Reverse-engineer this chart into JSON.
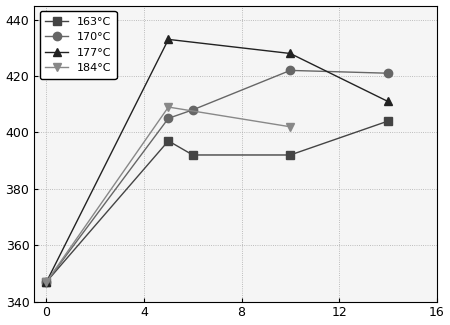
{
  "series": [
    {
      "label": "163°C",
      "x": [
        0,
        5,
        6,
        10,
        14
      ],
      "y": [
        347,
        397,
        392,
        392,
        404
      ],
      "marker": "s",
      "color": "#444444",
      "linestyle": "-"
    },
    {
      "label": "170°C",
      "x": [
        0,
        5,
        6,
        10,
        14
      ],
      "y": [
        347,
        405,
        408,
        422,
        421
      ],
      "marker": "o",
      "color": "#666666",
      "linestyle": "-"
    },
    {
      "label": "177°C",
      "x": [
        0,
        5,
        10,
        14
      ],
      "y": [
        347,
        433,
        428,
        411
      ],
      "marker": "^",
      "color": "#222222",
      "linestyle": "-"
    },
    {
      "label": "184°C",
      "x": [
        0,
        5,
        10
      ],
      "y": [
        347,
        409,
        402
      ],
      "marker": "v",
      "color": "#888888",
      "linestyle": "-"
    }
  ],
  "xlim": [
    -0.5,
    16
  ],
  "ylim": [
    340,
    445
  ],
  "xticks": [
    0,
    4,
    8,
    12,
    16
  ],
  "yticks": [
    340,
    360,
    380,
    400,
    420,
    440
  ],
  "xlabel": "",
  "ylabel": "",
  "legend_loc": "upper left",
  "grid": true,
  "background_color": "#f5f5f5",
  "marker_size": 6,
  "linewidth": 1.0
}
